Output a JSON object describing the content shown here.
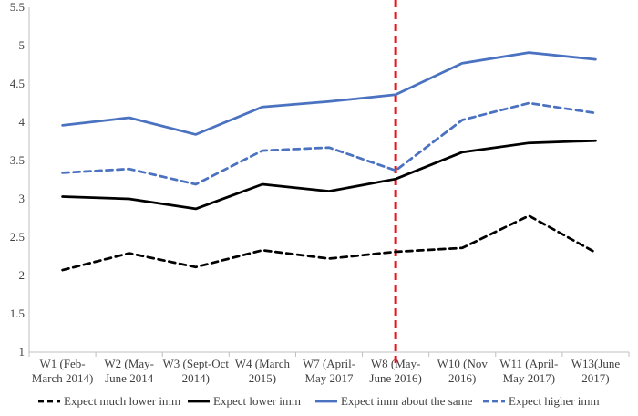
{
  "chart_data": {
    "type": "line",
    "title": "",
    "xlabel": "",
    "ylabel": "",
    "ylim": [
      1,
      5.5
    ],
    "yticks": [
      "1",
      "1.5",
      "2",
      "2.5",
      "3",
      "3.5",
      "4",
      "4.5",
      "5",
      "5.5"
    ],
    "ytick_values": [
      1,
      1.5,
      2,
      2.5,
      3,
      3.5,
      4,
      4.5,
      5,
      5.5
    ],
    "grid": false,
    "legend_position": "bottom",
    "categories": [
      [
        "W1 (Feb-",
        "March 2014)"
      ],
      [
        "W2 (May-",
        "June 2014"
      ],
      [
        "W3 (Sept-Oct",
        "2014)"
      ],
      [
        "W4 (March",
        "2015)"
      ],
      [
        "W7 (April-",
        "May 2017"
      ],
      [
        "W8 (May-",
        "June 2016)"
      ],
      [
        "W10 (Nov",
        "2016)"
      ],
      [
        "W11 (April-",
        "May 2017)"
      ],
      [
        "W13(June",
        "2017)"
      ]
    ],
    "reference_line": {
      "category_index": 5,
      "color": "#e8141c",
      "style": "dashed"
    },
    "series": [
      {
        "name": "Expect much lower imm",
        "color": "#000000",
        "dash": "dashed",
        "values": [
          2.07,
          2.29,
          2.11,
          2.33,
          2.22,
          2.31,
          2.36,
          2.78,
          2.3
        ]
      },
      {
        "name": "Expect lower imm",
        "color": "#000000",
        "dash": "solid",
        "values": [
          3.03,
          3.0,
          2.87,
          3.19,
          3.1,
          3.26,
          3.61,
          3.73,
          3.76
        ]
      },
      {
        "name": "Expect imm about the same",
        "color": "#4a72c0",
        "dash": "solid",
        "values": [
          3.96,
          4.06,
          3.84,
          4.2,
          4.27,
          4.36,
          4.77,
          4.91,
          4.82
        ]
      },
      {
        "name": "Expect higher imm",
        "color": "#4a72c0",
        "dash": "dashed",
        "values": [
          3.34,
          3.39,
          3.19,
          3.63,
          3.67,
          3.37,
          4.03,
          4.25,
          4.12
        ]
      }
    ]
  }
}
